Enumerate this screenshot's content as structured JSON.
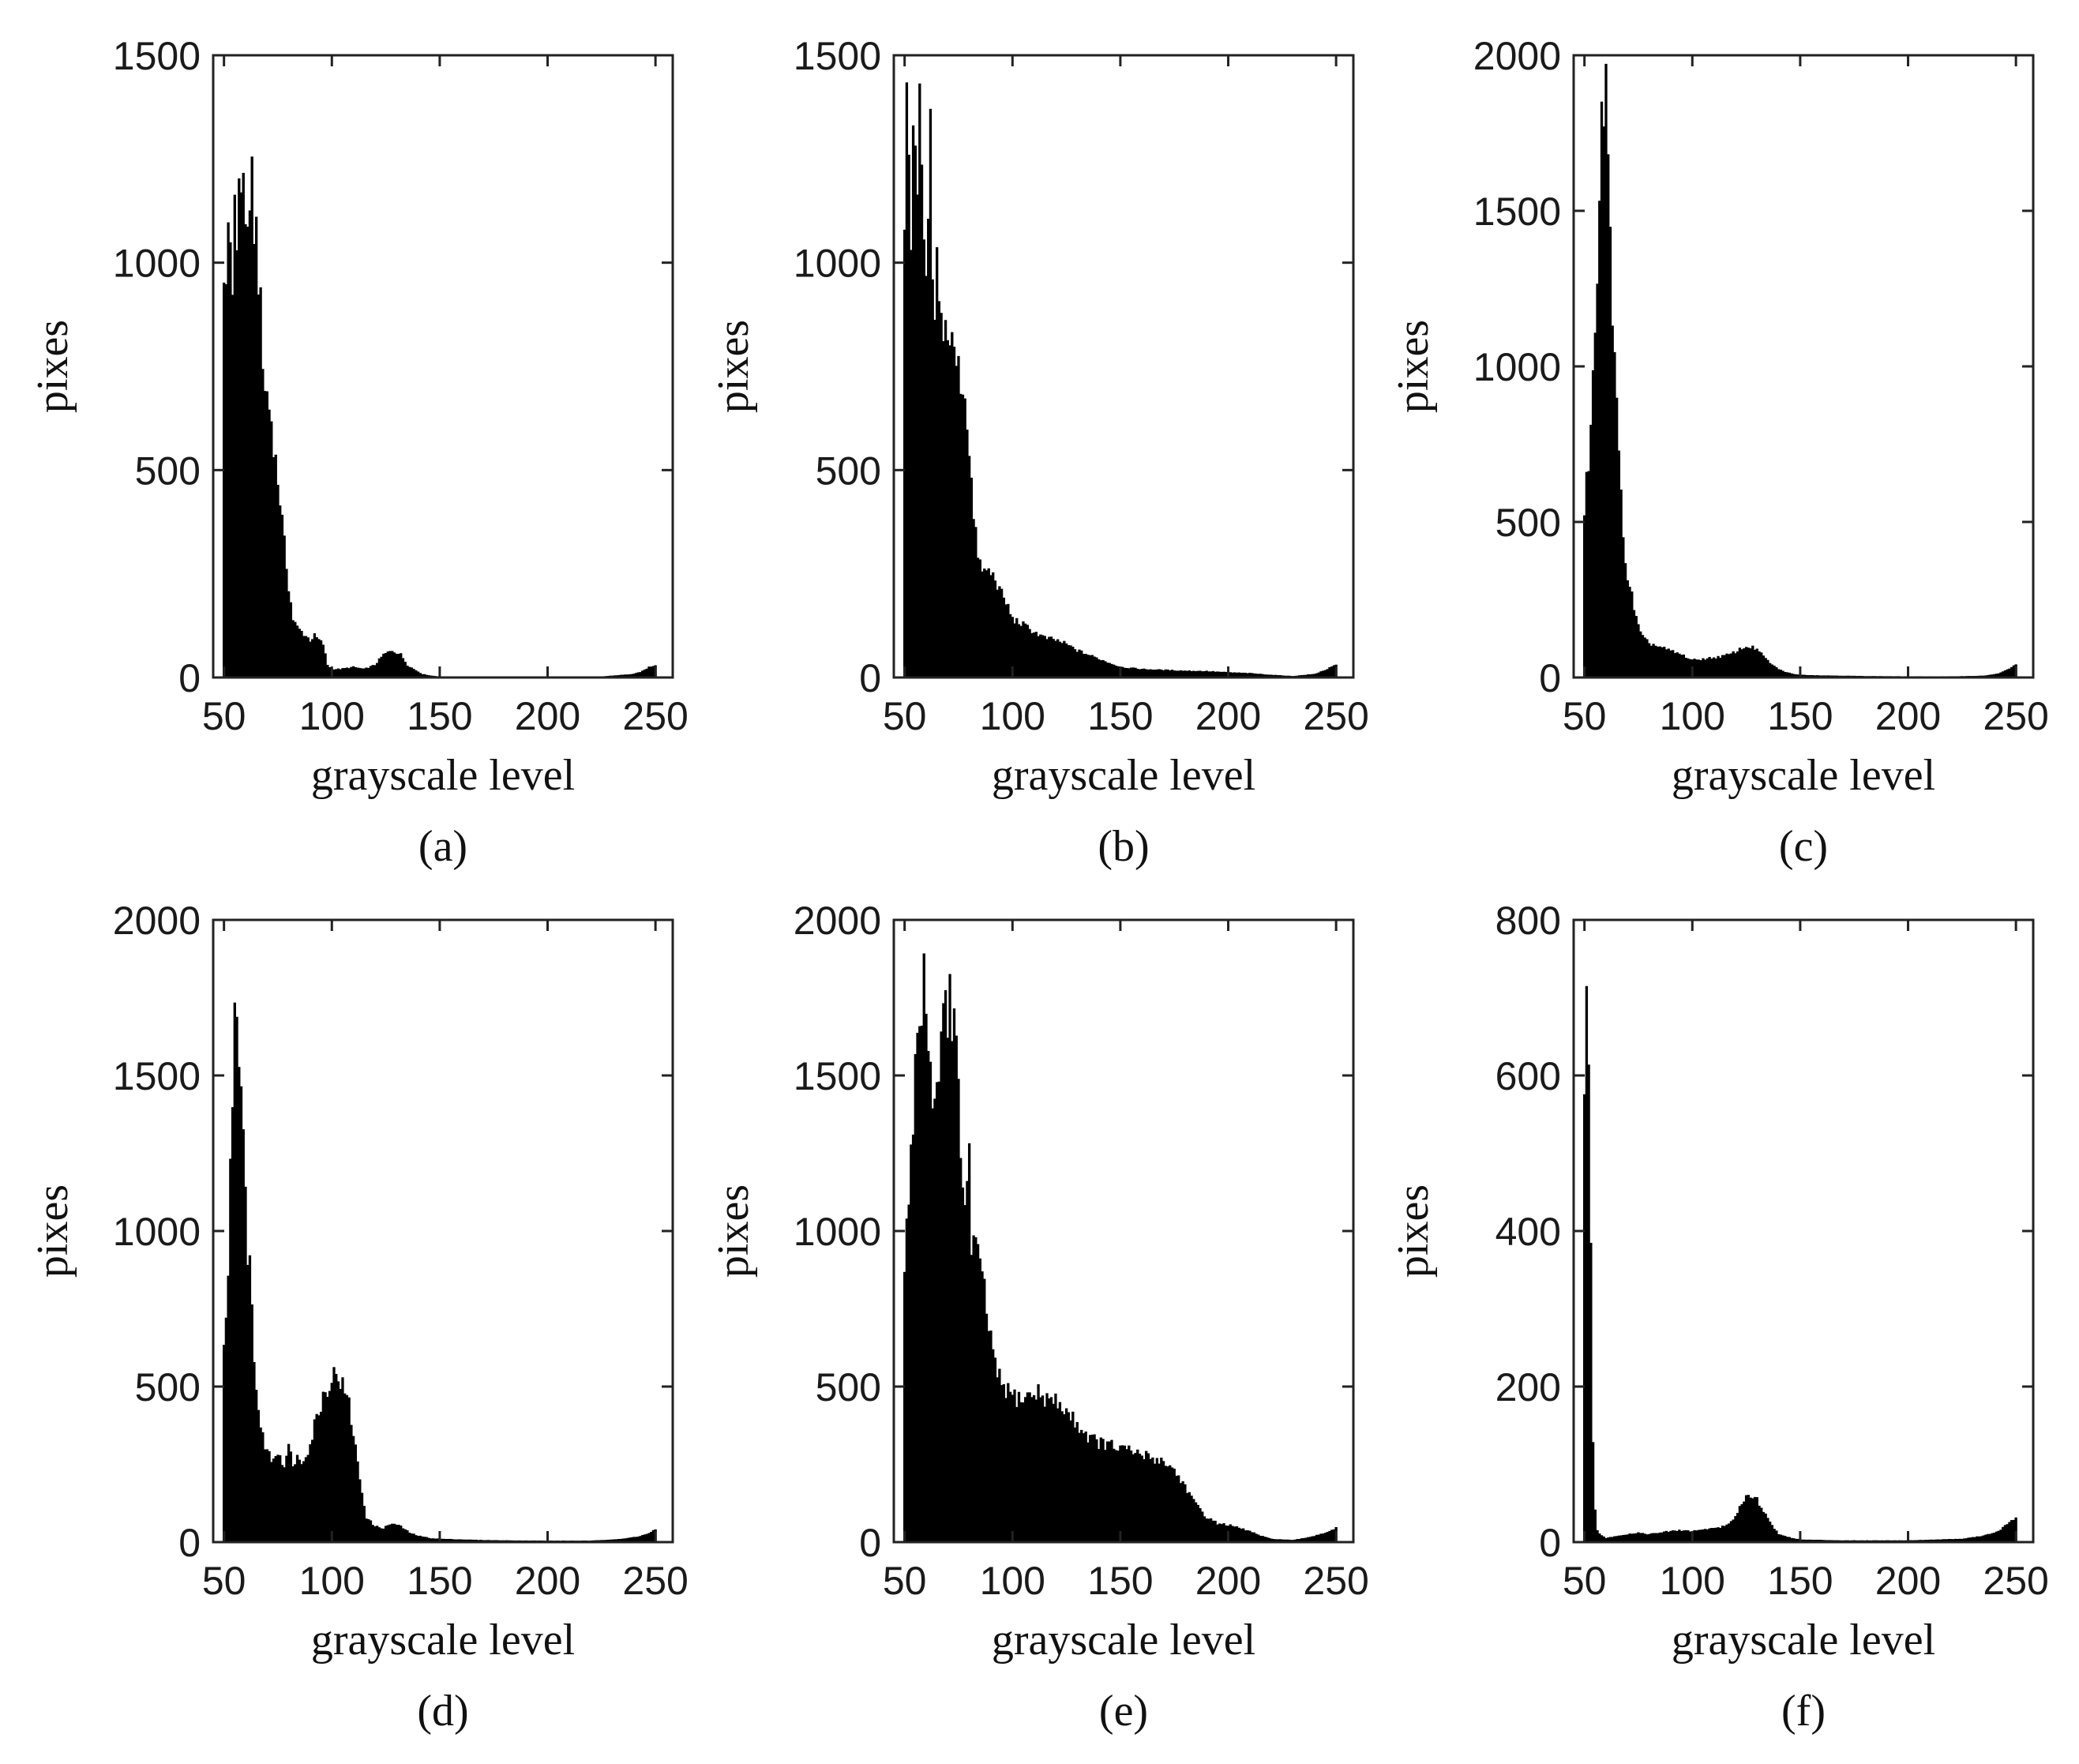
{
  "chart_data": [
    {
      "panel_label": "(a)",
      "type": "bar",
      "xlabel": "grayscale level",
      "ylabel": "pixes",
      "xlim": [
        45,
        258
      ],
      "ylim": [
        0,
        1500
      ],
      "x_ticks": [
        50,
        100,
        150,
        200,
        250
      ],
      "y_ticks": [
        0,
        500,
        1000,
        1500
      ],
      "bin_start": 50,
      "bin_end": 250,
      "peaks": [
        [
          50,
          900
        ],
        [
          51,
          950
        ],
        [
          52,
          1120
        ],
        [
          53,
          1050
        ],
        [
          54,
          980
        ],
        [
          55,
          1100
        ],
        [
          56,
          1060
        ],
        [
          57,
          1230
        ],
        [
          58,
          1150
        ],
        [
          59,
          1200
        ],
        [
          60,
          1090
        ],
        [
          61,
          1120
        ],
        [
          62,
          1060
        ],
        [
          63,
          1180
        ],
        [
          64,
          1100
        ],
        [
          65,
          1080
        ],
        [
          66,
          980
        ],
        [
          67,
          880
        ],
        [
          68,
          740
        ],
        [
          69,
          700
        ],
        [
          70,
          680
        ],
        [
          72,
          620
        ],
        [
          74,
          520
        ],
        [
          76,
          430
        ],
        [
          78,
          320
        ],
        [
          80,
          220
        ],
        [
          82,
          140
        ],
        [
          84,
          120
        ],
        [
          86,
          110
        ],
        [
          88,
          100
        ],
        [
          90,
          90
        ],
        [
          92,
          100
        ],
        [
          94,
          90
        ],
        [
          96,
          80
        ],
        [
          98,
          30
        ],
        [
          100,
          20
        ],
        [
          104,
          20
        ],
        [
          110,
          25
        ],
        [
          115,
          20
        ],
        [
          120,
          30
        ],
        [
          124,
          55
        ],
        [
          128,
          65
        ],
        [
          132,
          55
        ],
        [
          135,
          30
        ],
        [
          138,
          20
        ],
        [
          142,
          8
        ],
        [
          146,
          4
        ],
        [
          150,
          2
        ],
        [
          175,
          1
        ],
        [
          200,
          1
        ],
        [
          225,
          2
        ],
        [
          240,
          8
        ],
        [
          244,
          15
        ],
        [
          247,
          25
        ],
        [
          250,
          30
        ]
      ]
    },
    {
      "panel_label": "(b)",
      "type": "bar",
      "xlabel": "grayscale level",
      "ylabel": "pixes",
      "xlim": [
        45,
        258
      ],
      "ylim": [
        0,
        1500
      ],
      "x_ticks": [
        50,
        100,
        150,
        200,
        250
      ],
      "y_ticks": [
        0,
        500,
        1000,
        1500
      ],
      "bin_start": 50,
      "bin_end": 250,
      "peaks": [
        [
          50,
          1050
        ],
        [
          51,
          1380
        ],
        [
          52,
          1250
        ],
        [
          53,
          1100
        ],
        [
          54,
          1350
        ],
        [
          55,
          1200
        ],
        [
          56,
          1150
        ],
        [
          57,
          1400
        ],
        [
          58,
          1180
        ],
        [
          59,
          1000
        ],
        [
          60,
          950
        ],
        [
          61,
          1100
        ],
        [
          62,
          1300
        ],
        [
          63,
          900
        ],
        [
          64,
          880
        ],
        [
          65,
          1000
        ],
        [
          66,
          880
        ],
        [
          67,
          850
        ],
        [
          68,
          860
        ],
        [
          70,
          830
        ],
        [
          72,
          800
        ],
        [
          74,
          760
        ],
        [
          76,
          720
        ],
        [
          78,
          680
        ],
        [
          80,
          560
        ],
        [
          82,
          380
        ],
        [
          84,
          300
        ],
        [
          86,
          250
        ],
        [
          88,
          260
        ],
        [
          90,
          250
        ],
        [
          92,
          240
        ],
        [
          94,
          210
        ],
        [
          96,
          190
        ],
        [
          98,
          170
        ],
        [
          100,
          140
        ],
        [
          104,
          130
        ],
        [
          110,
          110
        ],
        [
          115,
          95
        ],
        [
          120,
          90
        ],
        [
          125,
          80
        ],
        [
          130,
          65
        ],
        [
          135,
          55
        ],
        [
          140,
          45
        ],
        [
          145,
          35
        ],
        [
          150,
          25
        ],
        [
          160,
          20
        ],
        [
          170,
          18
        ],
        [
          180,
          16
        ],
        [
          190,
          15
        ],
        [
          200,
          12
        ],
        [
          210,
          10
        ],
        [
          220,
          6
        ],
        [
          230,
          3
        ],
        [
          240,
          8
        ],
        [
          245,
          18
        ],
        [
          248,
          25
        ],
        [
          250,
          30
        ]
      ]
    },
    {
      "panel_label": "(c)",
      "type": "bar",
      "xlabel": "grayscale level",
      "ylabel": "pixes",
      "xlim": [
        45,
        258
      ],
      "ylim": [
        0,
        2000
      ],
      "x_ticks": [
        50,
        100,
        150,
        200,
        250
      ],
      "y_ticks": [
        0,
        500,
        1000,
        1500,
        2000
      ],
      "bin_start": 50,
      "bin_end": 250,
      "peaks": [
        [
          50,
          550
        ],
        [
          51,
          620
        ],
        [
          52,
          700
        ],
        [
          53,
          800
        ],
        [
          54,
          950
        ],
        [
          55,
          1100
        ],
        [
          56,
          1300
        ],
        [
          57,
          1500
        ],
        [
          58,
          1750
        ],
        [
          59,
          1700
        ],
        [
          60,
          1930
        ],
        [
          61,
          1800
        ],
        [
          62,
          1500
        ],
        [
          63,
          1200
        ],
        [
          64,
          1000
        ],
        [
          65,
          850
        ],
        [
          66,
          700
        ],
        [
          67,
          580
        ],
        [
          68,
          480
        ],
        [
          69,
          380
        ],
        [
          70,
          320
        ],
        [
          72,
          260
        ],
        [
          74,
          190
        ],
        [
          76,
          140
        ],
        [
          78,
          120
        ],
        [
          80,
          110
        ],
        [
          84,
          100
        ],
        [
          88,
          90
        ],
        [
          92,
          80
        ],
        [
          96,
          70
        ],
        [
          100,
          55
        ],
        [
          106,
          60
        ],
        [
          112,
          65
        ],
        [
          118,
          75
        ],
        [
          122,
          90
        ],
        [
          126,
          100
        ],
        [
          130,
          90
        ],
        [
          134,
          60
        ],
        [
          138,
          35
        ],
        [
          142,
          20
        ],
        [
          146,
          12
        ],
        [
          150,
          8
        ],
        [
          160,
          6
        ],
        [
          180,
          4
        ],
        [
          200,
          3
        ],
        [
          220,
          3
        ],
        [
          235,
          5
        ],
        [
          242,
          12
        ],
        [
          246,
          25
        ],
        [
          250,
          40
        ]
      ]
    },
    {
      "panel_label": "(d)",
      "type": "bar",
      "xlabel": "grayscale level",
      "ylabel": "pixes",
      "xlim": [
        45,
        258
      ],
      "ylim": [
        0,
        2000
      ],
      "x_ticks": [
        50,
        100,
        150,
        200,
        250
      ],
      "y_ticks": [
        0,
        500,
        1000,
        1500,
        2000
      ],
      "bin_start": 50,
      "bin_end": 250,
      "peaks": [
        [
          50,
          650
        ],
        [
          51,
          700
        ],
        [
          52,
          900
        ],
        [
          53,
          1200
        ],
        [
          54,
          1500
        ],
        [
          55,
          1730
        ],
        [
          56,
          1600
        ],
        [
          57,
          1450
        ],
        [
          58,
          1400
        ],
        [
          59,
          1300
        ],
        [
          60,
          1100
        ],
        [
          61,
          950
        ],
        [
          62,
          900
        ],
        [
          63,
          750
        ],
        [
          64,
          600
        ],
        [
          65,
          500
        ],
        [
          66,
          420
        ],
        [
          67,
          380
        ],
        [
          68,
          330
        ],
        [
          70,
          300
        ],
        [
          72,
          260
        ],
        [
          74,
          290
        ],
        [
          76,
          280
        ],
        [
          78,
          250
        ],
        [
          80,
          300
        ],
        [
          82,
          260
        ],
        [
          84,
          270
        ],
        [
          86,
          260
        ],
        [
          88,
          290
        ],
        [
          90,
          310
        ],
        [
          92,
          380
        ],
        [
          94,
          420
        ],
        [
          96,
          470
        ],
        [
          98,
          500
        ],
        [
          100,
          520
        ],
        [
          102,
          550
        ],
        [
          104,
          520
        ],
        [
          106,
          480
        ],
        [
          108,
          440
        ],
        [
          110,
          350
        ],
        [
          112,
          250
        ],
        [
          114,
          160
        ],
        [
          116,
          80
        ],
        [
          120,
          50
        ],
        [
          124,
          45
        ],
        [
          128,
          60
        ],
        [
          132,
          50
        ],
        [
          136,
          30
        ],
        [
          140,
          20
        ],
        [
          146,
          12
        ],
        [
          150,
          10
        ],
        [
          160,
          8
        ],
        [
          170,
          6
        ],
        [
          180,
          5
        ],
        [
          200,
          4
        ],
        [
          220,
          4
        ],
        [
          235,
          10
        ],
        [
          242,
          18
        ],
        [
          246,
          25
        ],
        [
          250,
          40
        ]
      ]
    },
    {
      "panel_label": "(e)",
      "type": "bar",
      "xlabel": "grayscale level",
      "ylabel": "pixes",
      "xlim": [
        45,
        258
      ],
      "ylim": [
        0,
        2000
      ],
      "x_ticks": [
        50,
        100,
        150,
        200,
        250
      ],
      "y_ticks": [
        0,
        500,
        1000,
        1500,
        2000
      ],
      "bin_start": 50,
      "bin_end": 250,
      "peaks": [
        [
          50,
          900
        ],
        [
          51,
          1000
        ],
        [
          52,
          1150
        ],
        [
          53,
          1250
        ],
        [
          54,
          1380
        ],
        [
          55,
          1500
        ],
        [
          56,
          1600
        ],
        [
          57,
          1700
        ],
        [
          58,
          1650
        ],
        [
          59,
          1850
        ],
        [
          60,
          1620
        ],
        [
          61,
          1500
        ],
        [
          62,
          1550
        ],
        [
          63,
          1400
        ],
        [
          64,
          1380
        ],
        [
          65,
          1480
        ],
        [
          66,
          1500
        ],
        [
          67,
          1650
        ],
        [
          68,
          1850
        ],
        [
          69,
          1700
        ],
        [
          70,
          1600
        ],
        [
          71,
          1920
        ],
        [
          72,
          1700
        ],
        [
          73,
          1650
        ],
        [
          74,
          1550
        ],
        [
          75,
          1400
        ],
        [
          76,
          1250
        ],
        [
          77,
          1150
        ],
        [
          78,
          1100
        ],
        [
          79,
          1200
        ],
        [
          80,
          1250
        ],
        [
          81,
          900
        ],
        [
          82,
          1000
        ],
        [
          84,
          900
        ],
        [
          86,
          850
        ],
        [
          88,
          750
        ],
        [
          90,
          650
        ],
        [
          92,
          560
        ],
        [
          94,
          520
        ],
        [
          96,
          500
        ],
        [
          98,
          480
        ],
        [
          100,
          470
        ],
        [
          104,
          460
        ],
        [
          108,
          470
        ],
        [
          112,
          480
        ],
        [
          116,
          460
        ],
        [
          120,
          450
        ],
        [
          125,
          420
        ],
        [
          130,
          380
        ],
        [
          135,
          340
        ],
        [
          140,
          320
        ],
        [
          145,
          310
        ],
        [
          150,
          300
        ],
        [
          155,
          290
        ],
        [
          160,
          280
        ],
        [
          165,
          270
        ],
        [
          170,
          260
        ],
        [
          175,
          230
        ],
        [
          180,
          180
        ],
        [
          185,
          120
        ],
        [
          190,
          80
        ],
        [
          195,
          60
        ],
        [
          200,
          55
        ],
        [
          205,
          45
        ],
        [
          210,
          35
        ],
        [
          215,
          20
        ],
        [
          220,
          10
        ],
        [
          225,
          8
        ],
        [
          230,
          6
        ],
        [
          235,
          12
        ],
        [
          240,
          20
        ],
        [
          245,
          30
        ],
        [
          250,
          45
        ]
      ]
    },
    {
      "panel_label": "(f)",
      "type": "bar",
      "xlabel": "grayscale level",
      "ylabel": "pixes",
      "xlim": [
        45,
        258
      ],
      "ylim": [
        0,
        800
      ],
      "x_ticks": [
        50,
        100,
        150,
        200,
        250
      ],
      "y_ticks": [
        0,
        200,
        400,
        600,
        800
      ],
      "bin_start": 50,
      "bin_end": 250,
      "peaks": [
        [
          50,
          600
        ],
        [
          51,
          680
        ],
        [
          52,
          580
        ],
        [
          53,
          380
        ],
        [
          54,
          120
        ],
        [
          55,
          40
        ],
        [
          56,
          15
        ],
        [
          58,
          8
        ],
        [
          60,
          5
        ],
        [
          65,
          8
        ],
        [
          70,
          10
        ],
        [
          75,
          12
        ],
        [
          80,
          10
        ],
        [
          85,
          12
        ],
        [
          90,
          14
        ],
        [
          95,
          15
        ],
        [
          100,
          14
        ],
        [
          105,
          16
        ],
        [
          110,
          18
        ],
        [
          115,
          20
        ],
        [
          118,
          25
        ],
        [
          120,
          35
        ],
        [
          122,
          45
        ],
        [
          124,
          55
        ],
        [
          126,
          60
        ],
        [
          128,
          60
        ],
        [
          130,
          55
        ],
        [
          132,
          45
        ],
        [
          134,
          35
        ],
        [
          136,
          25
        ],
        [
          138,
          18
        ],
        [
          140,
          10
        ],
        [
          145,
          6
        ],
        [
          150,
          3
        ],
        [
          170,
          2
        ],
        [
          200,
          2
        ],
        [
          225,
          4
        ],
        [
          235,
          8
        ],
        [
          240,
          12
        ],
        [
          244,
          18
        ],
        [
          247,
          25
        ],
        [
          250,
          30
        ]
      ]
    }
  ]
}
